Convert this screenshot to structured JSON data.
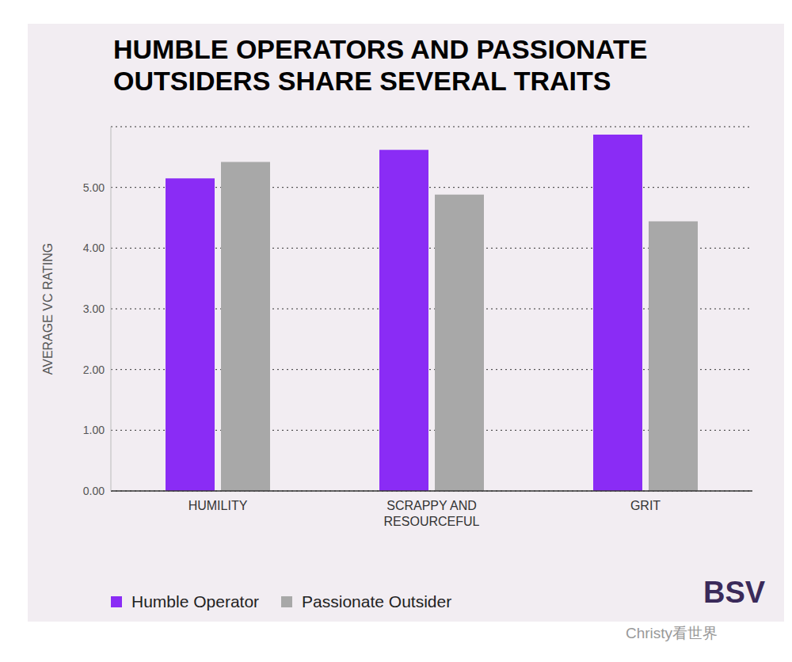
{
  "chart_data": {
    "type": "bar",
    "title": "HUMBLE OPERATORS AND PASSIONATE OUTSIDERS SHARE SEVERAL TRAITS",
    "y_label": "AVERAGE VC RATING",
    "categories": [
      "HUMILITY",
      "SCRAPPY AND RESOURCEFUL",
      "GRIT"
    ],
    "series": [
      {
        "name": "Humble Operator",
        "color": "#8a2cf5",
        "values": [
          5.15,
          5.62,
          5.87
        ]
      },
      {
        "name": "Passionate Outsider",
        "color": "#a8a8a8",
        "values": [
          5.42,
          4.88,
          4.44
        ]
      }
    ],
    "ylim": [
      0,
      6
    ],
    "yticks": [
      {
        "value": 0,
        "label": "0.00"
      },
      {
        "value": 1,
        "label": "1.00"
      },
      {
        "value": 2,
        "label": "2.00"
      },
      {
        "value": 3,
        "label": "3.00"
      },
      {
        "value": 4,
        "label": "4.00"
      },
      {
        "value": 5,
        "label": "5.00"
      }
    ],
    "grid": true,
    "legend": "bottom-left",
    "annotations": [
      "BSV",
      "Christy看世界"
    ]
  }
}
